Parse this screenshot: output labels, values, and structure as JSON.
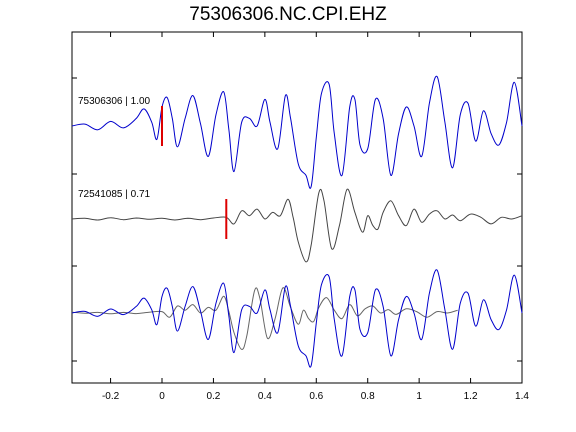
{
  "chart_data": {
    "type": "line",
    "title": "75306306.NC.CPI.EHZ",
    "xlabel": "",
    "ylabel": "",
    "xlim": [
      -0.35,
      1.4
    ],
    "x_ticks": [
      -0.2,
      0,
      0.2,
      0.4,
      0.6,
      0.8,
      1,
      1.2,
      1.4
    ],
    "x_tick_labels": [
      "-0.2",
      "0",
      "0.2",
      "0.4",
      "0.6",
      "0.8",
      "1",
      "1.2",
      "1.4"
    ],
    "grid": false,
    "colors": {
      "blue": "#0000cc",
      "gray": "#444444",
      "pick": "#dd0000",
      "frame": "#000000"
    },
    "traces": [
      {
        "label": "75306306 | 1.00",
        "color": "#0000cc",
        "pick_time": 0.0,
        "samples": [
          [
            -0.35,
            0.0
          ],
          [
            -0.3,
            0.05
          ],
          [
            -0.25,
            -0.1
          ],
          [
            -0.2,
            0.12
          ],
          [
            -0.15,
            -0.05
          ],
          [
            -0.1,
            0.2
          ],
          [
            -0.07,
            0.45
          ],
          [
            -0.04,
            0.1
          ],
          [
            -0.02,
            -0.35
          ],
          [
            0.0,
            0.5
          ],
          [
            0.02,
            0.75
          ],
          [
            0.04,
            0.2
          ],
          [
            0.06,
            -0.55
          ],
          [
            0.09,
            0.2
          ],
          [
            0.12,
            0.8
          ],
          [
            0.15,
            0.05
          ],
          [
            0.18,
            -0.8
          ],
          [
            0.21,
            0.3
          ],
          [
            0.24,
            0.9
          ],
          [
            0.26,
            -0.1
          ],
          [
            0.28,
            -1.2
          ],
          [
            0.31,
            0.1
          ],
          [
            0.34,
            0.2
          ],
          [
            0.37,
            0.0
          ],
          [
            0.4,
            0.7
          ],
          [
            0.42,
            0.1
          ],
          [
            0.45,
            -0.6
          ],
          [
            0.48,
            0.8
          ],
          [
            0.5,
            0.2
          ],
          [
            0.53,
            -1.0
          ],
          [
            0.56,
            -1.3
          ],
          [
            0.58,
            -1.6
          ],
          [
            0.6,
            -0.3
          ],
          [
            0.62,
            0.85
          ],
          [
            0.65,
            1.1
          ],
          [
            0.67,
            -0.2
          ],
          [
            0.7,
            -1.3
          ],
          [
            0.73,
            0.5
          ],
          [
            0.75,
            0.7
          ],
          [
            0.77,
            -0.5
          ],
          [
            0.8,
            -0.6
          ],
          [
            0.83,
            0.7
          ],
          [
            0.86,
            0.2
          ],
          [
            0.89,
            -1.3
          ],
          [
            0.92,
            -0.2
          ],
          [
            0.95,
            0.5
          ],
          [
            0.98,
            0.0
          ],
          [
            1.01,
            -0.8
          ],
          [
            1.04,
            0.6
          ],
          [
            1.07,
            1.3
          ],
          [
            1.1,
            0.1
          ],
          [
            1.13,
            -1.1
          ],
          [
            1.16,
            0.3
          ],
          [
            1.19,
            0.6
          ],
          [
            1.22,
            -0.4
          ],
          [
            1.25,
            0.4
          ],
          [
            1.28,
            -0.2
          ],
          [
            1.31,
            -0.5
          ],
          [
            1.34,
            0.1
          ],
          [
            1.37,
            1.15
          ],
          [
            1.4,
            0.0
          ]
        ]
      },
      {
        "label": "72541085 | 0.71",
        "color": "#444444",
        "pick_time": 0.25,
        "samples": [
          [
            -0.35,
            0.0
          ],
          [
            -0.3,
            0.02
          ],
          [
            -0.25,
            -0.03
          ],
          [
            -0.2,
            0.04
          ],
          [
            -0.15,
            -0.02
          ],
          [
            -0.1,
            0.03
          ],
          [
            -0.05,
            -0.01
          ],
          [
            0.0,
            0.02
          ],
          [
            0.05,
            -0.03
          ],
          [
            0.1,
            0.02
          ],
          [
            0.15,
            -0.02
          ],
          [
            0.2,
            0.03
          ],
          [
            0.25,
            0.05
          ],
          [
            0.28,
            -0.15
          ],
          [
            0.31,
            0.25
          ],
          [
            0.34,
            0.1
          ],
          [
            0.37,
            0.3
          ],
          [
            0.4,
            0.0
          ],
          [
            0.43,
            0.2
          ],
          [
            0.46,
            0.1
          ],
          [
            0.49,
            0.6
          ],
          [
            0.51,
            0.05
          ],
          [
            0.53,
            -0.7
          ],
          [
            0.56,
            -1.3
          ],
          [
            0.58,
            -0.8
          ],
          [
            0.61,
            0.8
          ],
          [
            0.63,
            0.55
          ],
          [
            0.66,
            -0.9
          ],
          [
            0.69,
            -0.2
          ],
          [
            0.72,
            0.9
          ],
          [
            0.75,
            0.2
          ],
          [
            0.78,
            -0.4
          ],
          [
            0.8,
            0.1
          ],
          [
            0.82,
            -0.2
          ],
          [
            0.84,
            -0.3
          ],
          [
            0.86,
            0.2
          ],
          [
            0.89,
            0.55
          ],
          [
            0.92,
            0.1
          ],
          [
            0.95,
            -0.2
          ],
          [
            0.98,
            0.3
          ],
          [
            1.01,
            -0.1
          ],
          [
            1.04,
            0.15
          ],
          [
            1.07,
            0.25
          ],
          [
            1.1,
            0.0
          ],
          [
            1.13,
            0.12
          ],
          [
            1.16,
            -0.05
          ],
          [
            1.2,
            0.15
          ],
          [
            1.24,
            0.05
          ],
          [
            1.28,
            -0.15
          ],
          [
            1.32,
            0.05
          ],
          [
            1.36,
            0.0
          ],
          [
            1.4,
            0.1
          ]
        ]
      }
    ],
    "overlay": {
      "description_series": [
        "75306306 | 1.00",
        "72541085 | 0.71"
      ],
      "shift": 0.25
    }
  }
}
